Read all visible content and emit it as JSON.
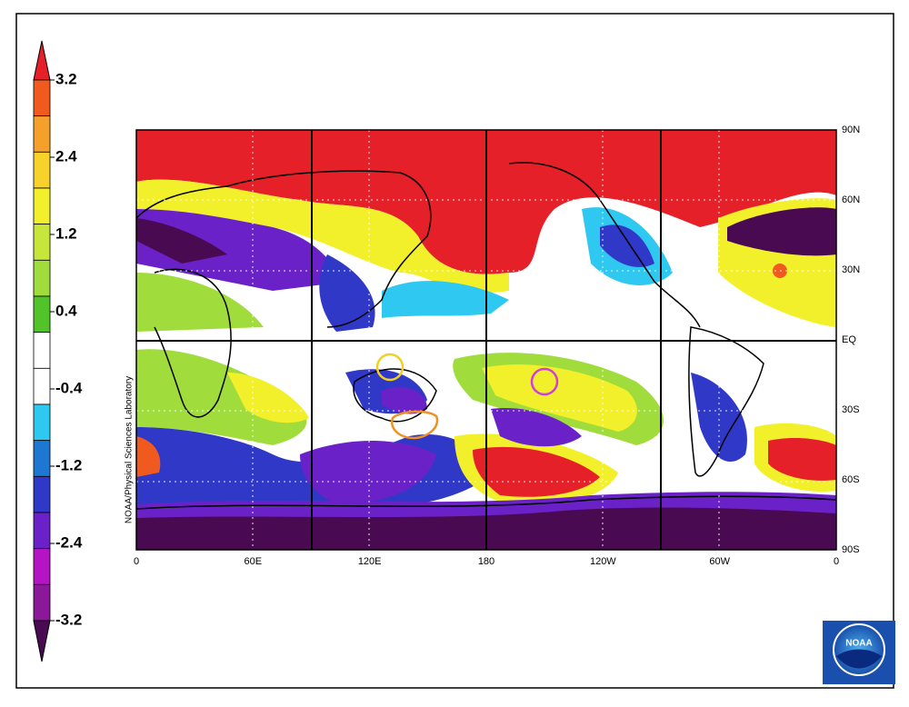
{
  "colorbar": {
    "colors": [
      "#e62028",
      "#f05a1e",
      "#f5a02a",
      "#f7d22a",
      "#f2f02a",
      "#c8e63a",
      "#a0dc3c",
      "#52c42a",
      "#ffffff",
      "#ffffff",
      "#2ec8f0",
      "#1e78d2",
      "#3038c8",
      "#6a22c8",
      "#b414c4",
      "#8a1898",
      "#4a0a52"
    ],
    "labels": [
      3.2,
      2.4,
      1.2,
      0.4,
      -0.4,
      -1.2,
      -2.4,
      -3.2
    ]
  },
  "map": {
    "x_labels": [
      "0",
      "60E",
      "120E",
      "180",
      "120W",
      "60W",
      "0"
    ],
    "y_labels": [
      "90N",
      "60N",
      "30N",
      "EQ",
      "30S",
      "60S",
      "90S"
    ],
    "credit": "NOAA/Physical Sciences Laboratory"
  },
  "logo": "NOAA"
}
